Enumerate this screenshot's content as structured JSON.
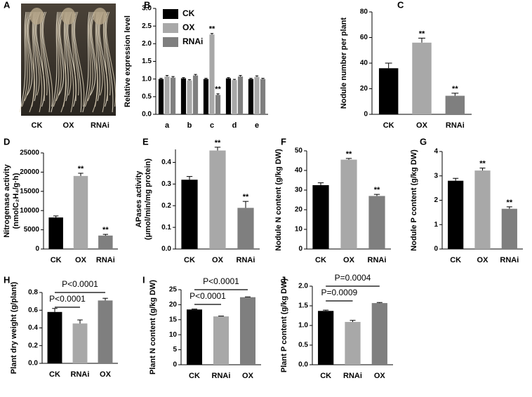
{
  "chart_data": [
    {
      "panel": "A",
      "type": "image",
      "categories": [
        "CK",
        "OX",
        "RNAi"
      ]
    },
    {
      "panel": "B",
      "type": "grouped-bar",
      "ylabel": [
        "Relative expression level"
      ],
      "categories": [
        "a",
        "b",
        "c",
        "d",
        "e"
      ],
      "series": [
        {
          "name": "CK",
          "color": "#000000",
          "values": [
            1.0,
            1.02,
            1.0,
            1.02,
            1.0
          ],
          "errors": [
            0.02,
            0.02,
            0.02,
            0.02,
            0.02
          ],
          "significance": [
            null,
            null,
            null,
            null,
            null
          ]
        },
        {
          "name": "OX",
          "color": "#a8a8a8",
          "values": [
            1.07,
            0.96,
            2.26,
            0.97,
            1.06
          ],
          "errors": [
            0.03,
            0.02,
            0.03,
            0.02,
            0.03
          ],
          "significance": [
            null,
            null,
            "**",
            null,
            null
          ]
        },
        {
          "name": "RNAi",
          "color": "#7f7f7f",
          "values": [
            1.04,
            1.1,
            0.55,
            1.07,
            1.0
          ],
          "errors": [
            0.03,
            0.03,
            0.03,
            0.03,
            0.02
          ],
          "significance": [
            null,
            null,
            "**",
            null,
            null
          ]
        }
      ],
      "ylim": [
        0,
        3
      ],
      "yticks": [
        {
          "value": 0,
          "label": "0.0"
        },
        {
          "value": 0.5,
          "label": "0.5"
        },
        {
          "value": 1,
          "label": "1.0"
        },
        {
          "value": 1.5,
          "label": "1.5"
        },
        {
          "value": 2,
          "label": "2.0"
        },
        {
          "value": 2.5,
          "label": "2.5"
        },
        {
          "value": 3,
          "label": "3.0"
        }
      ]
    },
    {
      "panel": "C",
      "type": "bar",
      "ylabel": [
        "Nodule number per plant"
      ],
      "categories": [
        "CK",
        "OX",
        "RNAi"
      ],
      "values": [
        36,
        56,
        14.5
      ],
      "errors": [
        4,
        3.5,
        2
      ],
      "colors": [
        "#000000",
        "#a8a8a8",
        "#7f7f7f"
      ],
      "significance": [
        null,
        "**",
        "**"
      ],
      "ylim": [
        0,
        80
      ],
      "yticks": [
        0,
        20,
        40,
        60,
        80
      ]
    },
    {
      "panel": "D",
      "type": "bar",
      "ylabel": [
        "Nitrogenase activity",
        "(nmolC₂H₄/g·h)"
      ],
      "categories": [
        "CK",
        "OX",
        "RNAi"
      ],
      "values": [
        8200,
        19000,
        3500
      ],
      "errors": [
        400,
        700,
        300
      ],
      "colors": [
        "#000000",
        "#a8a8a8",
        "#7f7f7f"
      ],
      "significance": [
        null,
        "**",
        "**"
      ],
      "ylim": [
        0,
        25000
      ],
      "yticks": [
        0,
        5000,
        10000,
        15000,
        20000,
        25000
      ]
    },
    {
      "panel": "E",
      "type": "bar",
      "ylabel": [
        "APases activity",
        "(μmol/min/mg protein)"
      ],
      "categories": [
        "CK",
        "OX",
        "RNAi"
      ],
      "values": [
        0.32,
        0.455,
        0.19
      ],
      "errors": [
        0.015,
        0.015,
        0.03
      ],
      "colors": [
        "#000000",
        "#a8a8a8",
        "#7f7f7f"
      ],
      "significance": [
        null,
        "**",
        "**"
      ],
      "ylim": [
        0,
        0.46
      ],
      "yticks": [
        {
          "value": 0,
          "label": "0.0"
        },
        0.1,
        0.2,
        0.3,
        0.4
      ]
    },
    {
      "panel": "F",
      "type": "bar",
      "ylabel": [
        "Nodule N content (g/kg DW)"
      ],
      "categories": [
        "CK",
        "OX",
        "RNAi"
      ],
      "values": [
        32.5,
        45.5,
        27
      ],
      "errors": [
        1.2,
        0.6,
        0.8
      ],
      "colors": [
        "#000000",
        "#a8a8a8",
        "#7f7f7f"
      ],
      "significance": [
        null,
        "**",
        "**"
      ],
      "ylim": [
        0,
        50
      ],
      "yticks": [
        0,
        10,
        20,
        30,
        40,
        50
      ]
    },
    {
      "panel": "G",
      "type": "bar",
      "ylabel": [
        "Nodule P content (g/kg DW)"
      ],
      "categories": [
        "CK",
        "OX",
        "RNAi"
      ],
      "values": [
        2.8,
        3.22,
        1.65
      ],
      "errors": [
        0.1,
        0.1,
        0.08
      ],
      "colors": [
        "#000000",
        "#a8a8a8",
        "#7f7f7f"
      ],
      "significance": [
        null,
        "**",
        "**"
      ],
      "ylim": [
        0,
        4
      ],
      "yticks": [
        0,
        1,
        2,
        3,
        4
      ]
    },
    {
      "panel": "H",
      "type": "bar",
      "ylabel": [
        "Plant dry weight (g/plant)"
      ],
      "categories": [
        "CK",
        "RNAi",
        "OX"
      ],
      "values": [
        0.58,
        0.45,
        0.71
      ],
      "errors": [
        0.04,
        0.04,
        0.025
      ],
      "colors": [
        "#000000",
        "#a8a8a8",
        "#7f7f7f"
      ],
      "comparisons": [
        {
          "label": "P<0.0001",
          "groups": [
            "CK",
            "OX"
          ]
        },
        {
          "label": "P<0.0001",
          "groups": [
            "CK",
            "RNAi"
          ]
        }
      ],
      "ylim": [
        0,
        0.8
      ],
      "yticks": [
        {
          "value": 0,
          "label": "0.0"
        },
        0.2,
        0.4,
        0.6,
        0.8
      ]
    },
    {
      "panel": "I",
      "type": "bar",
      "ylabel": [
        "Plant N content (g/kg DW)"
      ],
      "categories": [
        "CK",
        "RNAi",
        "OX"
      ],
      "values": [
        18.4,
        16.1,
        22.5
      ],
      "errors": [
        0.15,
        0.1,
        0.1
      ],
      "colors": [
        "#000000",
        "#a8a8a8",
        "#7f7f7f"
      ],
      "comparisons": [
        {
          "label": "P<0.0001",
          "groups": [
            "CK",
            "OX"
          ]
        },
        {
          "label": "P<0.0001",
          "groups": [
            "CK",
            "RNAi"
          ]
        }
      ],
      "ylim": [
        0,
        25
      ],
      "yticks": [
        0,
        5,
        10,
        15,
        20,
        25
      ]
    },
    {
      "panel": "J",
      "type": "bar",
      "ylabel": [
        "Plant P content (g/kg DW)"
      ],
      "categories": [
        "CK",
        "RNAi",
        "OX"
      ],
      "values": [
        1.37,
        1.09,
        1.57
      ],
      "errors": [
        0.02,
        0.04,
        0.015
      ],
      "colors": [
        "#000000",
        "#a8a8a8",
        "#7f7f7f"
      ],
      "comparisons": [
        {
          "label": "P=0.0004",
          "groups": [
            "CK",
            "OX"
          ]
        },
        {
          "label": "P=0.0009",
          "groups": [
            "CK",
            "RNAi"
          ]
        }
      ],
      "ylim": [
        0,
        2
      ],
      "yticks": [
        {
          "value": 0,
          "label": "0.0"
        },
        {
          "value": 0.5,
          "label": "0.5"
        },
        {
          "value": 1,
          "label": "1.0"
        },
        {
          "value": 1.5,
          "label": "1.5"
        },
        {
          "value": 2,
          "label": "2.0"
        }
      ]
    }
  ]
}
